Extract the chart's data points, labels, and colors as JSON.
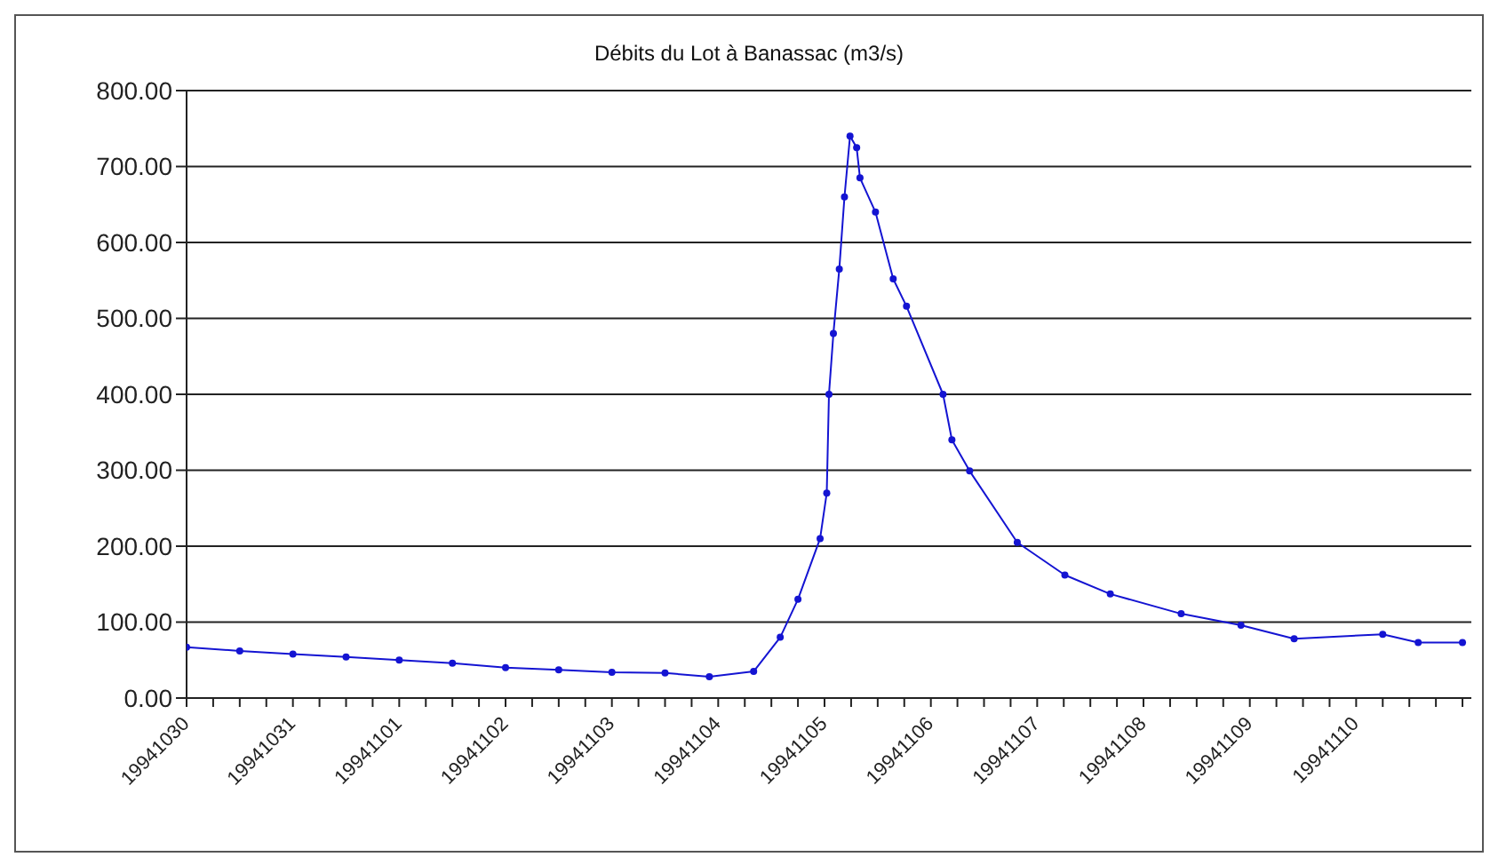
{
  "chart_data": {
    "type": "line",
    "title": "Débits du Lot à Banassac (m3/s)",
    "marker": "circle",
    "line_style": "solid",
    "grid": "y",
    "legend": false,
    "x": [
      "1994-10-30T00:00",
      "1994-10-30T12:00",
      "1994-10-31T00:00",
      "1994-10-31T12:00",
      "1994-11-01T00:00",
      "1994-11-01T12:00",
      "1994-11-02T00:00",
      "1994-11-02T12:00",
      "1994-11-03T00:00",
      "1994-11-03T12:00",
      "1994-11-03T22:00",
      "1994-11-04T08:00",
      "1994-11-04T14:00",
      "1994-11-04T18:00",
      "1994-11-04T23:00",
      "1994-11-05T00:30",
      "1994-11-05T01:00",
      "1994-11-05T02:00",
      "1994-11-05T03:20",
      "1994-11-05T04:30",
      "1994-11-05T05:45",
      "1994-11-05T07:15",
      "1994-11-05T08:00",
      "1994-11-05T11:30",
      "1994-11-05T15:30",
      "1994-11-05T18:30",
      "1994-11-06T02:45",
      "1994-11-06T04:45",
      "1994-11-06T08:45",
      "1994-11-06T19:30",
      "1994-11-07T06:15",
      "1994-11-07T16:30",
      "1994-11-08T08:30",
      "1994-11-08T22:00",
      "1994-11-09T10:00",
      "1994-11-10T06:00",
      "1994-11-10T14:00",
      "1994-11-11T00:00"
    ],
    "series": [
      {
        "color": "#1414d2",
        "values": [
          67,
          62,
          58,
          54,
          50,
          46,
          40,
          37,
          34,
          33,
          28,
          35,
          80,
          130,
          210,
          270,
          400,
          480,
          565,
          660,
          740,
          725,
          685,
          640,
          552,
          516,
          400,
          340,
          299,
          205,
          162,
          137,
          111,
          96,
          78,
          84,
          73,
          73
        ]
      }
    ],
    "xlim": [
      "1994-10-30T00:00",
      "1994-11-11T02:00"
    ],
    "xticks": [
      {
        "value": "1994-10-30T00:00",
        "label": "19941030"
      },
      {
        "value": "1994-10-30T06:00",
        "label": null
      },
      {
        "value": "1994-10-30T12:00",
        "label": null
      },
      {
        "value": "1994-10-30T18:00",
        "label": null
      },
      {
        "value": "1994-10-31T00:00",
        "label": "19941031"
      },
      {
        "value": "1994-10-31T06:00",
        "label": null
      },
      {
        "value": "1994-10-31T12:00",
        "label": null
      },
      {
        "value": "1994-10-31T18:00",
        "label": null
      },
      {
        "value": "1994-11-01T00:00",
        "label": "19941101"
      },
      {
        "value": "1994-11-01T06:00",
        "label": null
      },
      {
        "value": "1994-11-01T12:00",
        "label": null
      },
      {
        "value": "1994-11-01T18:00",
        "label": null
      },
      {
        "value": "1994-11-02T00:00",
        "label": "19941102"
      },
      {
        "value": "1994-11-02T06:00",
        "label": null
      },
      {
        "value": "1994-11-02T12:00",
        "label": null
      },
      {
        "value": "1994-11-02T18:00",
        "label": null
      },
      {
        "value": "1994-11-03T00:00",
        "label": "19941103"
      },
      {
        "value": "1994-11-03T06:00",
        "label": null
      },
      {
        "value": "1994-11-03T12:00",
        "label": null
      },
      {
        "value": "1994-11-03T18:00",
        "label": null
      },
      {
        "value": "1994-11-04T00:00",
        "label": "19941104"
      },
      {
        "value": "1994-11-04T06:00",
        "label": null
      },
      {
        "value": "1994-11-04T12:00",
        "label": null
      },
      {
        "value": "1994-11-04T18:00",
        "label": null
      },
      {
        "value": "1994-11-05T00:00",
        "label": "19941105"
      },
      {
        "value": "1994-11-05T06:00",
        "label": null
      },
      {
        "value": "1994-11-05T12:00",
        "label": null
      },
      {
        "value": "1994-11-05T18:00",
        "label": null
      },
      {
        "value": "1994-11-06T00:00",
        "label": "19941106"
      },
      {
        "value": "1994-11-06T06:00",
        "label": null
      },
      {
        "value": "1994-11-06T12:00",
        "label": null
      },
      {
        "value": "1994-11-06T18:00",
        "label": null
      },
      {
        "value": "1994-11-07T00:00",
        "label": "19941107"
      },
      {
        "value": "1994-11-07T06:00",
        "label": null
      },
      {
        "value": "1994-11-07T12:00",
        "label": null
      },
      {
        "value": "1994-11-07T18:00",
        "label": null
      },
      {
        "value": "1994-11-08T00:00",
        "label": "19941108"
      },
      {
        "value": "1994-11-08T06:00",
        "label": null
      },
      {
        "value": "1994-11-08T12:00",
        "label": null
      },
      {
        "value": "1994-11-08T18:00",
        "label": null
      },
      {
        "value": "1994-11-09T00:00",
        "label": "19941109"
      },
      {
        "value": "1994-11-09T06:00",
        "label": null
      },
      {
        "value": "1994-11-09T12:00",
        "label": null
      },
      {
        "value": "1994-11-09T18:00",
        "label": null
      },
      {
        "value": "1994-11-10T00:00",
        "label": "19941110"
      },
      {
        "value": "1994-11-10T06:00",
        "label": null
      },
      {
        "value": "1994-11-10T12:00",
        "label": null
      },
      {
        "value": "1994-11-10T18:00",
        "label": null
      },
      {
        "value": "1994-11-11T00:00",
        "label": null
      }
    ],
    "ylim": [
      0,
      800
    ],
    "yticks": [
      {
        "value": 0,
        "label": "0.00"
      },
      {
        "value": 100,
        "label": "100.00"
      },
      {
        "value": 200,
        "label": "200.00"
      },
      {
        "value": 300,
        "label": "300.00"
      },
      {
        "value": 400,
        "label": "400.00"
      },
      {
        "value": 500,
        "label": "500.00"
      },
      {
        "value": 600,
        "label": "600.00"
      },
      {
        "value": 700,
        "label": "700.00"
      },
      {
        "value": 800,
        "label": "800.00"
      }
    ]
  }
}
